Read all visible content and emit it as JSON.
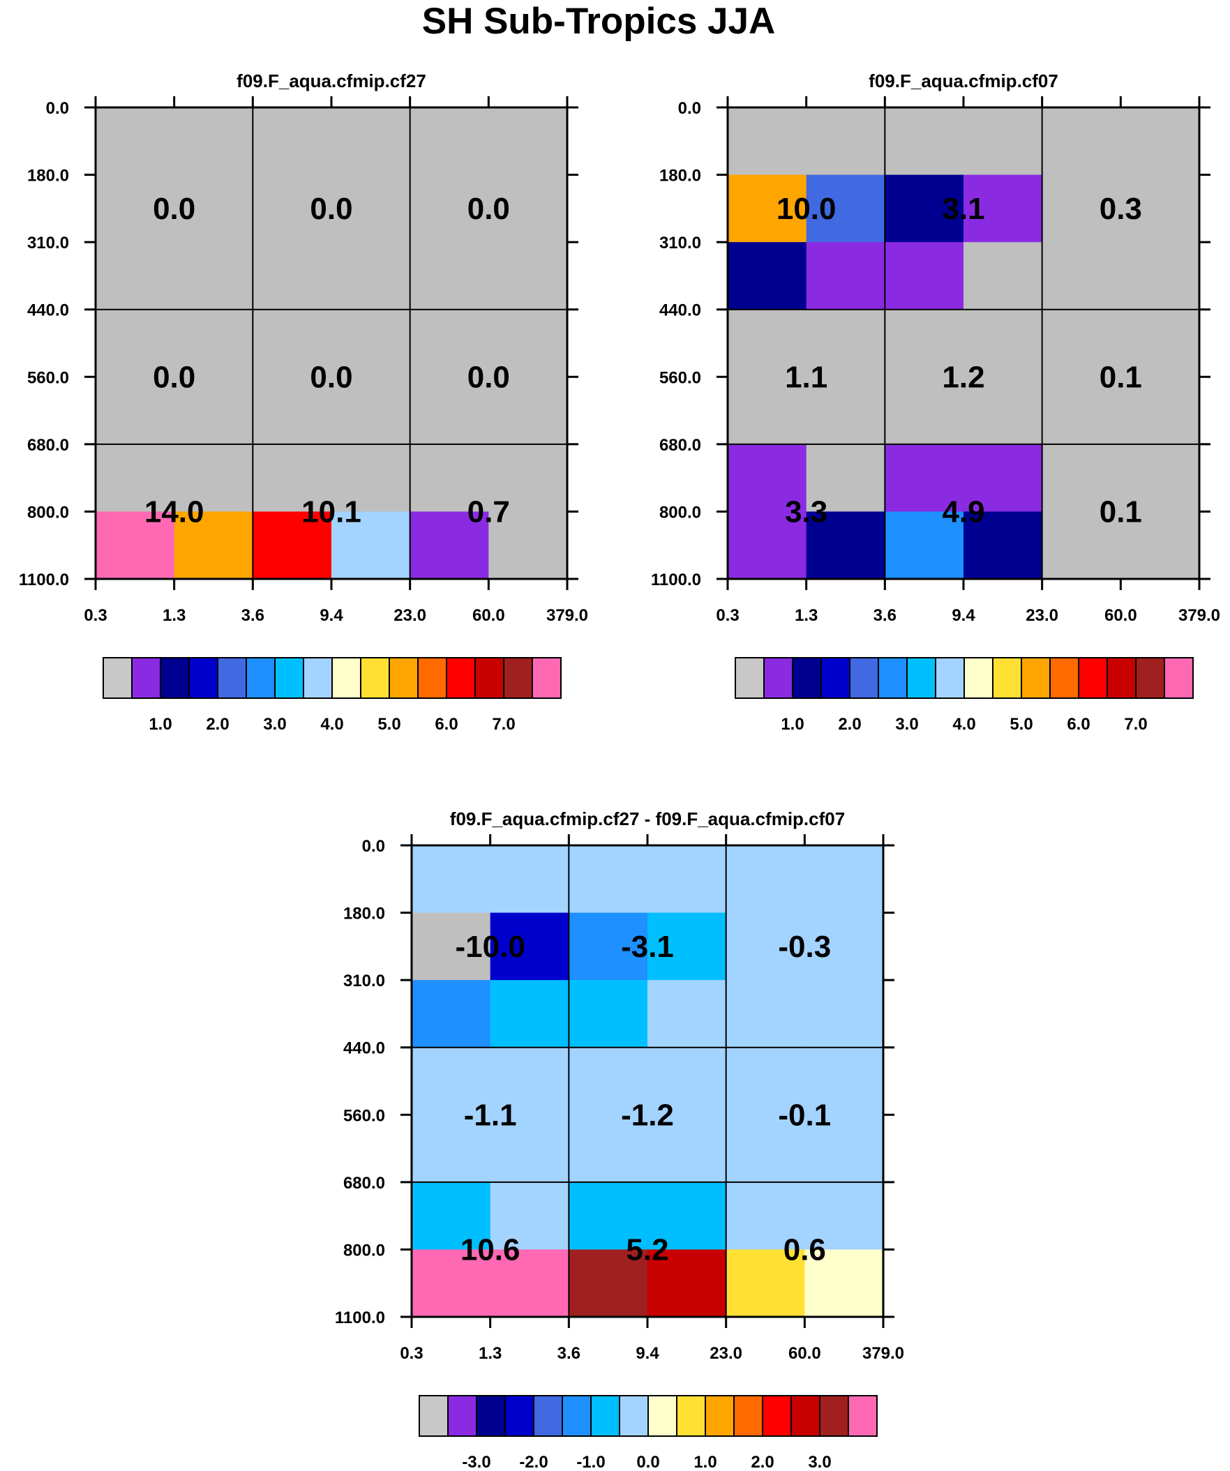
{
  "title": "SH Sub-Tropics JJA",
  "colors": {
    "bg": "#ffffff",
    "text": "#000000",
    "grid": "#000000"
  },
  "chart_data": [
    {
      "type": "heatmap",
      "title": "f09.F_aqua.cfmip.cf27",
      "x_ticks": [
        "0.3",
        "1.3",
        "3.6",
        "9.4",
        "23.0",
        "60.0",
        "379.0"
      ],
      "y_ticks": [
        "0.0",
        "180.0",
        "310.0",
        "440.0",
        "560.0",
        "680.0",
        "800.0",
        "1100.0"
      ],
      "cells": [
        [
          "#BFBFBF",
          "#BFBFBF",
          "#BFBFBF",
          "#BFBFBF",
          "#BFBFBF",
          "#BFBFBF"
        ],
        [
          "#BFBFBF",
          "#BFBFBF",
          "#BFBFBF",
          "#BFBFBF",
          "#BFBFBF",
          "#BFBFBF"
        ],
        [
          "#BFBFBF",
          "#BFBFBF",
          "#BFBFBF",
          "#BFBFBF",
          "#BFBFBF",
          "#BFBFBF"
        ],
        [
          "#BFBFBF",
          "#BFBFBF",
          "#BFBFBF",
          "#BFBFBF",
          "#BFBFBF",
          "#BFBFBF"
        ],
        [
          "#BFBFBF",
          "#BFBFBF",
          "#BFBFBF",
          "#BFBFBF",
          "#BFBFBF",
          "#BFBFBF"
        ],
        [
          "#BFBFBF",
          "#BFBFBF",
          "#BFBFBF",
          "#BFBFBF",
          "#BFBFBF",
          "#BFBFBF"
        ],
        [
          "#FF69B4",
          "#FFA500",
          "#FF0000",
          "#A3D3FF",
          "#8A2BE2",
          "#BFBFBF"
        ]
      ],
      "box_values": [
        [
          "0.0",
          "0.0",
          "0.0"
        ],
        [
          "0.0",
          "0.0",
          "0.0"
        ],
        [
          "14.0",
          "10.1",
          "0.7"
        ]
      ],
      "colorbar": {
        "colors": [
          "#C8C8C8",
          "#8A2BE2",
          "#000090",
          "#0000CD",
          "#4169E1",
          "#1E90FF",
          "#00BFFF",
          "#A3D3FF",
          "#FFFFCC",
          "#FFE033",
          "#FFA500",
          "#FF6A00",
          "#FF0000",
          "#C80000",
          "#A02020",
          "#FF69B4"
        ],
        "labels": [
          "1.0",
          "2.0",
          "3.0",
          "4.0",
          "5.0",
          "6.0",
          "7.0"
        ],
        "label_boundaries": [
          2,
          4,
          6,
          8,
          10,
          12,
          14
        ]
      }
    },
    {
      "type": "heatmap",
      "title": "f09.F_aqua.cfmip.cf07",
      "x_ticks": [
        "0.3",
        "1.3",
        "3.6",
        "9.4",
        "23.0",
        "60.0",
        "379.0"
      ],
      "y_ticks": [
        "0.0",
        "180.0",
        "310.0",
        "440.0",
        "560.0",
        "680.0",
        "800.0",
        "1100.0"
      ],
      "cells": [
        [
          "#BFBFBF",
          "#BFBFBF",
          "#BFBFBF",
          "#BFBFBF",
          "#BFBFBF",
          "#BFBFBF"
        ],
        [
          "#FFA500",
          "#4169E1",
          "#000090",
          "#8A2BE2",
          "#BFBFBF",
          "#BFBFBF"
        ],
        [
          "#000090",
          "#8A2BE2",
          "#8A2BE2",
          "#BFBFBF",
          "#BFBFBF",
          "#BFBFBF"
        ],
        [
          "#BFBFBF",
          "#BFBFBF",
          "#BFBFBF",
          "#BFBFBF",
          "#BFBFBF",
          "#BFBFBF"
        ],
        [
          "#BFBFBF",
          "#BFBFBF",
          "#BFBFBF",
          "#BFBFBF",
          "#BFBFBF",
          "#BFBFBF"
        ],
        [
          "#8A2BE2",
          "#BFBFBF",
          "#8A2BE2",
          "#8A2BE2",
          "#BFBFBF",
          "#BFBFBF"
        ],
        [
          "#8A2BE2",
          "#000090",
          "#1E90FF",
          "#000090",
          "#BFBFBF",
          "#BFBFBF"
        ]
      ],
      "box_values": [
        [
          "10.0",
          "3.1",
          "0.3"
        ],
        [
          "1.1",
          "1.2",
          "0.1"
        ],
        [
          "3.3",
          "4.9",
          "0.1"
        ]
      ],
      "colorbar": {
        "colors": [
          "#C8C8C8",
          "#8A2BE2",
          "#000090",
          "#0000CD",
          "#4169E1",
          "#1E90FF",
          "#00BFFF",
          "#A3D3FF",
          "#FFFFCC",
          "#FFE033",
          "#FFA500",
          "#FF6A00",
          "#FF0000",
          "#C80000",
          "#A02020",
          "#FF69B4"
        ],
        "labels": [
          "1.0",
          "2.0",
          "3.0",
          "4.0",
          "5.0",
          "6.0",
          "7.0"
        ],
        "label_boundaries": [
          2,
          4,
          6,
          8,
          10,
          12,
          14
        ]
      }
    },
    {
      "type": "heatmap",
      "title": "f09.F_aqua.cfmip.cf27 - f09.F_aqua.cfmip.cf07",
      "x_ticks": [
        "0.3",
        "1.3",
        "3.6",
        "9.4",
        "23.0",
        "60.0",
        "379.0"
      ],
      "y_ticks": [
        "0.0",
        "180.0",
        "310.0",
        "440.0",
        "560.0",
        "680.0",
        "800.0",
        "1100.0"
      ],
      "cells": [
        [
          "#A3D3FF",
          "#A3D3FF",
          "#A3D3FF",
          "#A3D3FF",
          "#A3D3FF",
          "#A3D3FF"
        ],
        [
          "#BFBFBF",
          "#0000CD",
          "#1E90FF",
          "#00BFFF",
          "#A3D3FF",
          "#A3D3FF"
        ],
        [
          "#1E90FF",
          "#00BFFF",
          "#00BFFF",
          "#A3D3FF",
          "#A3D3FF",
          "#A3D3FF"
        ],
        [
          "#A3D3FF",
          "#A3D3FF",
          "#A3D3FF",
          "#A3D3FF",
          "#A3D3FF",
          "#A3D3FF"
        ],
        [
          "#A3D3FF",
          "#A3D3FF",
          "#A3D3FF",
          "#A3D3FF",
          "#A3D3FF",
          "#A3D3FF"
        ],
        [
          "#00BFFF",
          "#A3D3FF",
          "#00BFFF",
          "#00BFFF",
          "#A3D3FF",
          "#A3D3FF"
        ],
        [
          "#FF69B4",
          "#FF69B4",
          "#A02020",
          "#C80000",
          "#FFE033",
          "#FFFFCC"
        ]
      ],
      "box_values": [
        [
          "-10.0",
          "-3.1",
          "-0.3"
        ],
        [
          "-1.1",
          "-1.2",
          "-0.1"
        ],
        [
          "10.6",
          "5.2",
          "0.6"
        ]
      ],
      "colorbar": {
        "colors": [
          "#C8C8C8",
          "#8A2BE2",
          "#000090",
          "#0000CD",
          "#4169E1",
          "#1E90FF",
          "#00BFFF",
          "#A3D3FF",
          "#FFFFCC",
          "#FFE033",
          "#FFA500",
          "#FF6A00",
          "#FF0000",
          "#C80000",
          "#A02020",
          "#FF69B4"
        ],
        "labels": [
          "-3.0",
          "-2.0",
          "-1.0",
          "0.0",
          "1.0",
          "2.0",
          "3.0"
        ],
        "label_boundaries": [
          2,
          4,
          6,
          8,
          10,
          12,
          14
        ]
      }
    }
  ]
}
